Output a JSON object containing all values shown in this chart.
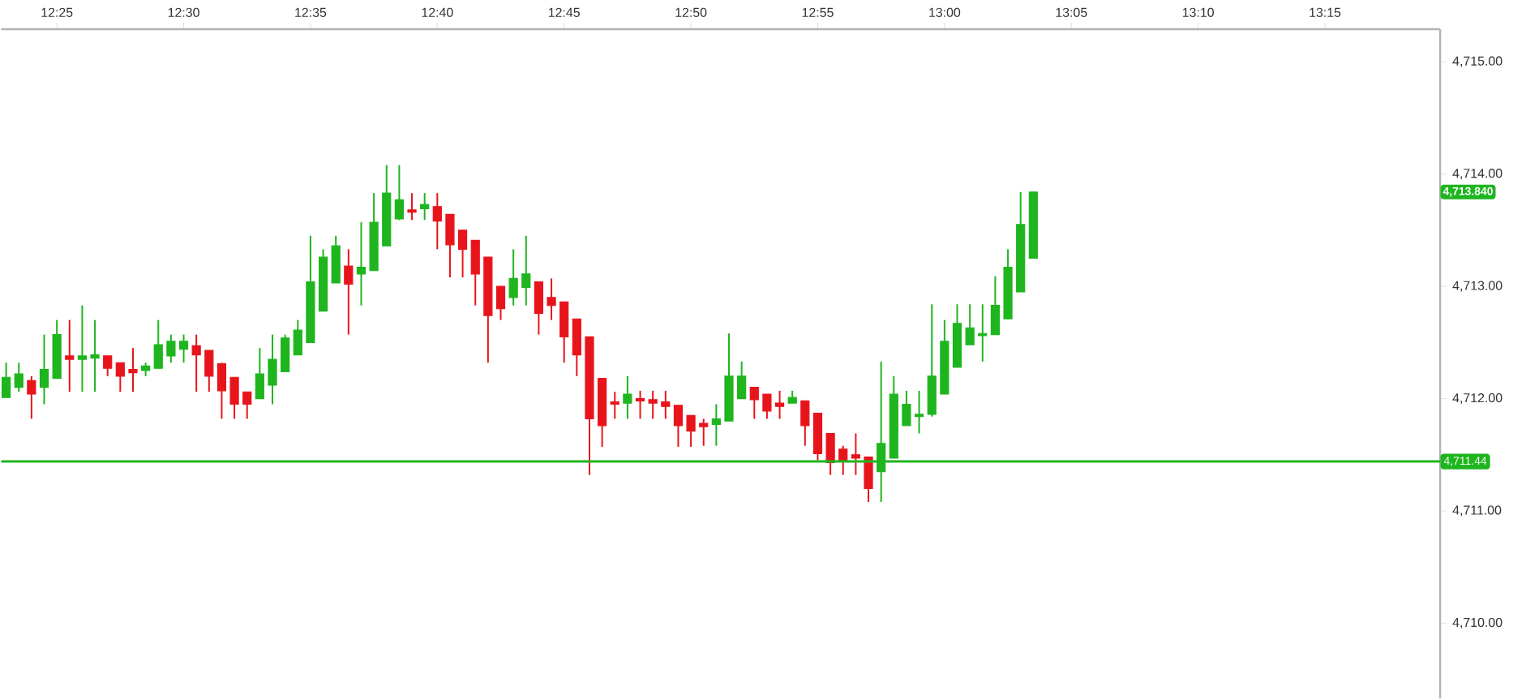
{
  "chart_data": {
    "type": "candlestick",
    "x": [
      12.38333,
      12.39167,
      12.4,
      12.40833,
      12.41667,
      12.425,
      12.43333,
      12.44167,
      12.45,
      12.45833,
      12.46667,
      12.475,
      12.48333,
      12.49167,
      12.5,
      12.50833,
      12.51667,
      12.525,
      12.53333,
      12.54167,
      12.55,
      12.55833,
      12.56667,
      12.575,
      12.58333,
      12.59167,
      12.6,
      12.60833,
      12.61667,
      12.625,
      12.63333,
      12.64167,
      12.65,
      12.65833,
      12.66667,
      12.675,
      12.68333,
      12.69167,
      12.7,
      12.70833,
      12.71667,
      12.725,
      12.73333,
      12.74167,
      12.75,
      12.75833,
      12.76667,
      12.775,
      12.78333,
      12.79167,
      12.8,
      12.80833,
      12.81667,
      12.825,
      12.83333,
      12.84167,
      12.85,
      12.85833,
      12.86667,
      12.875,
      12.88333,
      12.89167,
      12.9,
      12.90833,
      12.91667,
      12.925,
      12.93333,
      12.94167,
      12.95,
      12.95833,
      12.96667,
      12.975,
      12.98333,
      12.99167,
      13.0,
      13.00833,
      13.01667,
      13.025,
      13.03333,
      13.04167,
      13.05,
      13.05833
    ],
    "ohlc": [
      [
        4712.01,
        4712.32,
        4712.01,
        4712.19
      ],
      [
        4712.1,
        4712.32,
        4712.06,
        4712.22
      ],
      [
        4712.16,
        4712.2,
        4711.82,
        4712.04
      ],
      [
        4712.1,
        4712.57,
        4711.95,
        4712.26
      ],
      [
        4712.18,
        4712.7,
        4712.18,
        4712.57
      ],
      [
        4712.38,
        4712.7,
        4712.06,
        4712.35
      ],
      [
        4712.35,
        4712.83,
        4712.06,
        4712.38
      ],
      [
        4712.36,
        4712.7,
        4712.06,
        4712.39
      ],
      [
        4712.38,
        4712.38,
        4712.2,
        4712.27
      ],
      [
        4712.32,
        4712.32,
        4712.06,
        4712.2
      ],
      [
        4712.26,
        4712.45,
        4712.06,
        4712.23
      ],
      [
        4712.25,
        4712.32,
        4712.2,
        4712.29
      ],
      [
        4712.27,
        4712.7,
        4712.27,
        4712.48
      ],
      [
        4712.38,
        4712.57,
        4712.32,
        4712.51
      ],
      [
        4712.44,
        4712.57,
        4712.32,
        4712.51
      ],
      [
        4712.47,
        4712.57,
        4712.06,
        4712.39
      ],
      [
        4712.43,
        4712.43,
        4712.06,
        4712.2
      ],
      [
        4712.31,
        4712.32,
        4711.82,
        4712.07
      ],
      [
        4712.19,
        4712.19,
        4711.82,
        4711.95
      ],
      [
        4712.06,
        4712.06,
        4711.82,
        4711.95
      ],
      [
        4712.0,
        4712.45,
        4712.0,
        4712.22
      ],
      [
        4712.12,
        4712.57,
        4711.95,
        4712.35
      ],
      [
        4712.24,
        4712.57,
        4712.24,
        4712.54
      ],
      [
        4712.39,
        4712.7,
        4712.39,
        4712.61
      ],
      [
        4712.5,
        4713.45,
        4712.5,
        4713.04
      ],
      [
        4712.78,
        4713.33,
        4712.78,
        4713.26
      ],
      [
        4713.03,
        4713.45,
        4713.03,
        4713.36
      ],
      [
        4713.18,
        4713.33,
        4712.57,
        4713.02
      ],
      [
        4713.11,
        4713.57,
        4712.83,
        4713.17
      ],
      [
        4713.14,
        4713.83,
        4713.14,
        4713.57
      ],
      [
        4713.36,
        4714.08,
        4713.36,
        4713.83
      ],
      [
        4713.6,
        4714.08,
        4713.59,
        4713.77
      ],
      [
        4713.68,
        4713.83,
        4713.59,
        4713.66
      ],
      [
        4713.69,
        4713.83,
        4713.59,
        4713.73
      ],
      [
        4713.71,
        4713.83,
        4713.33,
        4713.58
      ],
      [
        4713.64,
        4713.64,
        4713.08,
        4713.37
      ],
      [
        4713.5,
        4713.5,
        4713.08,
        4713.33
      ],
      [
        4713.41,
        4713.41,
        4712.83,
        4713.11
      ],
      [
        4713.26,
        4713.26,
        4712.32,
        4712.74
      ],
      [
        4713.0,
        4713.0,
        4712.7,
        4712.8
      ],
      [
        4712.9,
        4713.33,
        4712.83,
        4713.07
      ],
      [
        4712.99,
        4713.45,
        4712.83,
        4713.11
      ],
      [
        4713.04,
        4713.04,
        4712.57,
        4712.76
      ],
      [
        4712.9,
        4713.07,
        4712.7,
        4712.83
      ],
      [
        4712.86,
        4712.86,
        4712.32,
        4712.55
      ],
      [
        4712.71,
        4712.71,
        4712.2,
        4712.39
      ],
      [
        4712.55,
        4712.55,
        4711.32,
        4711.82
      ],
      [
        4712.18,
        4712.18,
        4711.57,
        4711.76
      ],
      [
        4711.97,
        4712.06,
        4711.82,
        4711.95
      ],
      [
        4711.96,
        4712.2,
        4711.82,
        4712.04
      ],
      [
        4712.0,
        4712.07,
        4711.82,
        4711.98
      ],
      [
        4711.99,
        4712.07,
        4711.82,
        4711.96
      ],
      [
        4711.97,
        4712.07,
        4711.82,
        4711.93
      ],
      [
        4711.94,
        4711.94,
        4711.57,
        4711.76
      ],
      [
        4711.85,
        4711.85,
        4711.57,
        4711.71
      ],
      [
        4711.78,
        4711.82,
        4711.58,
        4711.75
      ],
      [
        4711.77,
        4711.95,
        4711.58,
        4711.82
      ],
      [
        4711.8,
        4712.58,
        4711.8,
        4712.2
      ],
      [
        4712.0,
        4712.33,
        4712.0,
        4712.2
      ],
      [
        4712.1,
        4712.1,
        4711.82,
        4711.99
      ],
      [
        4712.04,
        4712.04,
        4711.82,
        4711.89
      ],
      [
        4711.96,
        4712.07,
        4711.82,
        4711.93
      ],
      [
        4711.96,
        4712.07,
        4711.96,
        4712.01
      ],
      [
        4711.98,
        4711.98,
        4711.58,
        4711.76
      ],
      [
        4711.87,
        4711.87,
        4711.45,
        4711.51
      ],
      [
        4711.69,
        4711.69,
        4711.32,
        4711.43
      ],
      [
        4711.55,
        4711.58,
        4711.32,
        4711.45
      ],
      [
        4711.5,
        4711.69,
        4711.32,
        4711.47
      ],
      [
        4711.48,
        4711.48,
        4711.08,
        4711.2
      ],
      [
        4711.35,
        4712.33,
        4711.08,
        4711.6
      ],
      [
        4711.47,
        4712.2,
        4711.47,
        4712.04
      ],
      [
        4711.76,
        4712.07,
        4711.76,
        4711.95
      ],
      [
        4711.84,
        4712.07,
        4711.69,
        4711.86
      ],
      [
        4711.86,
        4712.84,
        4711.84,
        4712.2
      ],
      [
        4712.04,
        4712.7,
        4712.04,
        4712.51
      ],
      [
        4712.28,
        4712.84,
        4712.28,
        4712.67
      ],
      [
        4712.48,
        4712.84,
        4712.48,
        4712.63
      ],
      [
        4712.56,
        4712.84,
        4712.33,
        4712.58
      ],
      [
        4712.57,
        4713.09,
        4712.57,
        4712.83
      ],
      [
        4712.71,
        4713.33,
        4712.71,
        4713.17
      ],
      [
        4712.95,
        4713.84,
        4712.95,
        4713.55
      ],
      [
        4713.25,
        4713.84,
        4713.25,
        4713.84
      ]
    ],
    "colors": [
      "#1eb51e",
      "#1eb51e",
      "#e8141c",
      "#1eb51e",
      "#1eb51e",
      "#e8141c",
      "#1eb51e",
      "#1eb51e",
      "#e8141c",
      "#e8141c",
      "#e8141c",
      "#1eb51e",
      "#1eb51e",
      "#1eb51e",
      "#1eb51e",
      "#e8141c",
      "#e8141c",
      "#e8141c",
      "#e8141c",
      "#e8141c",
      "#1eb51e",
      "#1eb51e",
      "#1eb51e",
      "#1eb51e",
      "#1eb51e",
      "#1eb51e",
      "#1eb51e",
      "#e8141c",
      "#1eb51e",
      "#1eb51e",
      "#1eb51e",
      "#1eb51e",
      "#e8141c",
      "#1eb51e",
      "#e8141c",
      "#e8141c",
      "#e8141c",
      "#e8141c",
      "#e8141c",
      "#e8141c",
      "#1eb51e",
      "#1eb51e",
      "#e8141c",
      "#e8141c",
      "#e8141c",
      "#e8141c",
      "#e8141c",
      "#e8141c",
      "#e8141c",
      "#1eb51e",
      "#e8141c",
      "#e8141c",
      "#e8141c",
      "#e8141c",
      "#e8141c",
      "#e8141c",
      "#1eb51e",
      "#1eb51e",
      "#1eb51e",
      "#e8141c",
      "#e8141c",
      "#e8141c",
      "#1eb51e",
      "#e8141c",
      "#e8141c",
      "#e8141c",
      "#e8141c",
      "#e8141c",
      "#e8141c",
      "#1eb51e",
      "#1eb51e",
      "#1eb51e",
      "#1eb51e",
      "#1eb51e",
      "#1eb51e",
      "#1eb51e",
      "#1eb51e",
      "#1eb51e",
      "#1eb51e",
      "#1eb51e",
      "#1eb51e",
      "#1eb51e"
    ],
    "xlim": [
      12.3801,
      13.3257
    ],
    "xticks": [
      {
        "value": 12.41667,
        "label": "12:25"
      },
      {
        "value": 12.5,
        "label": "12:30"
      },
      {
        "value": 12.58333,
        "label": "12:35"
      },
      {
        "value": 12.66667,
        "label": "12:40"
      },
      {
        "value": 12.75,
        "label": "12:45"
      },
      {
        "value": 12.83333,
        "label": "12:50"
      },
      {
        "value": 12.91667,
        "label": "12:55"
      },
      {
        "value": 13.0,
        "label": "13:00"
      },
      {
        "value": 13.08333,
        "label": "13:05"
      },
      {
        "value": 13.16667,
        "label": "13:10"
      },
      {
        "value": 13.25,
        "label": "13:15"
      }
    ],
    "ylim": [
      4709.33,
      4715.29
    ],
    "yticks": [
      {
        "value": 4710,
        "label": "4,710.00"
      },
      {
        "value": 4711,
        "label": "4,711.00"
      },
      {
        "value": 4712,
        "label": "4,712.00"
      },
      {
        "value": 4713,
        "label": "4,713.00"
      },
      {
        "value": 4714,
        "label": "4,714.00"
      },
      {
        "value": 4715,
        "label": "4,715.00"
      }
    ],
    "ref_lines": [
      {
        "axis": "y",
        "value": 4711.44,
        "label": "4,711.44",
        "color": "#1eb51e"
      }
    ],
    "annotations": [
      "4,713.840"
    ]
  }
}
